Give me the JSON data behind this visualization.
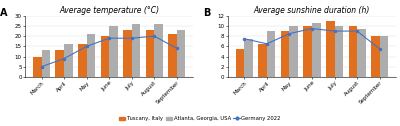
{
  "months": [
    "March",
    "April",
    "May",
    "June",
    "July",
    "August",
    "September"
  ],
  "temp_tuscany": [
    10,
    13,
    16,
    20,
    23,
    23,
    21
  ],
  "temp_atlanta": [
    13,
    16,
    21,
    25,
    26,
    26,
    23
  ],
  "temp_germany": [
    5,
    9,
    15,
    19,
    19,
    20,
    14
  ],
  "sun_tuscany": [
    5.5,
    6.5,
    9,
    10,
    11,
    10,
    8
  ],
  "sun_atlanta": [
    7.5,
    9,
    10,
    10.5,
    10,
    9.5,
    8
  ],
  "sun_germany": [
    7.5,
    6.5,
    8.5,
    9.5,
    9,
    9,
    5.5
  ],
  "temp_ylim": [
    0,
    30
  ],
  "temp_yticks": [
    0,
    5,
    10,
    15,
    20,
    25,
    30
  ],
  "sun_ylim": [
    0,
    12
  ],
  "sun_yticks": [
    0,
    2,
    4,
    6,
    8,
    10,
    12
  ],
  "color_tuscany": "#E07020",
  "color_atlanta": "#ADADAD",
  "color_germany_line": "#4472C4",
  "title_temp": "Average temperature (°C)",
  "title_sun": "Average sunshine duration (h)",
  "legend_tuscany": "Tuscany, Italy",
  "legend_atlanta": "Atlanta, Georgia, USA",
  "legend_germany": "Germany 2022",
  "label_A": "A",
  "label_B": "B",
  "bar_width": 0.38,
  "title_fontsize": 5.5,
  "tick_fontsize": 4,
  "legend_fontsize": 3.8,
  "label_fontsize": 7
}
